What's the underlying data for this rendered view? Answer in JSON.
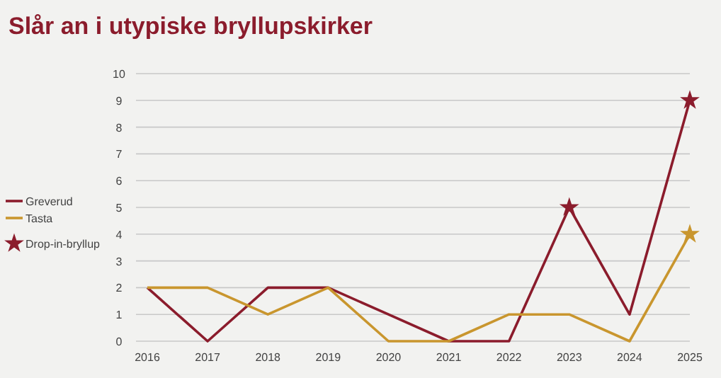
{
  "chart_data": {
    "type": "line",
    "title": "Slår an i utypiske bryllupskirker",
    "categories": [
      "2016",
      "2017",
      "2018",
      "2019",
      "2020",
      "2021",
      "2022",
      "2023",
      "2024",
      "2025"
    ],
    "series": [
      {
        "name": "Greverud",
        "color": "#8b1c2c",
        "values": [
          2,
          0,
          2,
          2,
          1,
          0,
          0,
          5,
          1,
          9
        ]
      },
      {
        "name": "Tasta",
        "color": "#c9962e",
        "values": [
          2,
          2,
          1,
          2,
          0,
          0,
          1,
          1,
          0,
          4
        ]
      },
      {
        "name": "Drop-in-bryllup",
        "type": "scatter",
        "color": "#8b1c2c",
        "values": [
          null,
          null,
          null,
          null,
          null,
          null,
          null,
          5,
          null,
          9
        ],
        "marker": "star"
      },
      {
        "type": "scatter",
        "color": "#c9962e",
        "values": [
          null,
          null,
          null,
          null,
          null,
          null,
          null,
          null,
          null,
          4
        ],
        "marker": "star"
      }
    ],
    "ylim": [
      0,
      10
    ],
    "yticks": [
      0,
      1,
      2,
      3,
      4,
      5,
      6,
      7,
      8,
      9,
      10
    ],
    "grid": "y",
    "legend": "left",
    "marker": "none",
    "line_style": "solid"
  }
}
